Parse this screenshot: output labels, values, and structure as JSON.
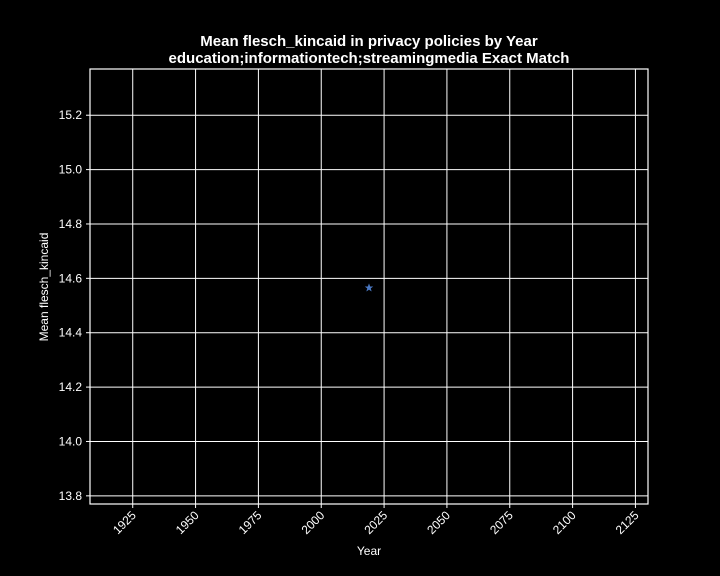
{
  "chart_data": {
    "type": "scatter",
    "title": "Mean flesch_kincaid in privacy policies by Year",
    "subtitle": "education;informationtech;streamingmedia Exact Match",
    "xlabel": "Year",
    "ylabel": "Mean flesch_kincaid",
    "xlim": [
      1908,
      2130
    ],
    "ylim": [
      13.77,
      15.37
    ],
    "xticks": [
      1925,
      1950,
      1975,
      2000,
      2025,
      2050,
      2075,
      2100,
      2125
    ],
    "yticks": [
      13.8,
      14.0,
      14.2,
      14.4,
      14.6,
      14.8,
      15.0,
      15.2
    ],
    "ytick_labels": [
      "13.8",
      "14.0",
      "14.2",
      "14.4",
      "14.6",
      "14.8",
      "15.0",
      "15.2"
    ],
    "grid": true,
    "marker": "star",
    "series": [
      {
        "color": "#4a78c2",
        "points": [
          {
            "x": 2019,
            "y": 14.565
          }
        ]
      }
    ],
    "colors": {
      "background": "#000000",
      "foreground": "#ffffff",
      "marker": "#4a78c2"
    }
  }
}
